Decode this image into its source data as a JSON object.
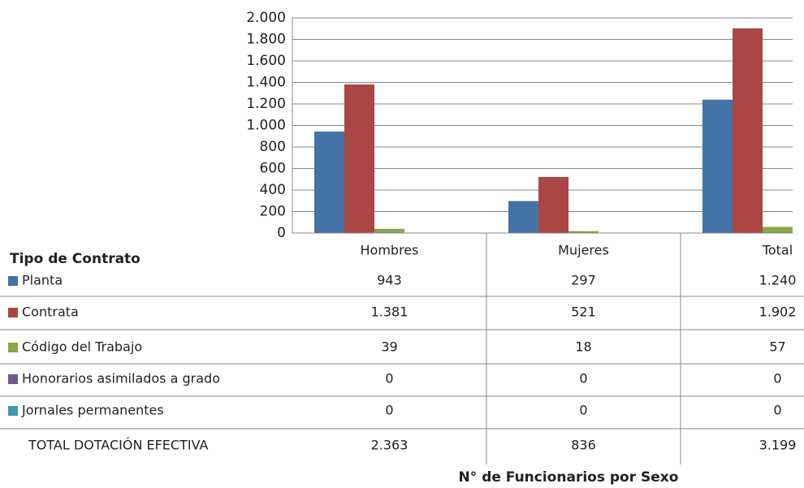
{
  "chart_data": {
    "type": "bar",
    "x_label": "N° de Funcionarios por Sexo",
    "table_title": "Tipo de Contrato",
    "categories": [
      "Hombres",
      "Mujeres",
      "Total"
    ],
    "series": [
      {
        "name": "Planta",
        "color": "#4572a7",
        "values": [
          943,
          297,
          1240
        ],
        "value_labels": [
          "943",
          "297",
          "1.240"
        ]
      },
      {
        "name": "Contrata",
        "color": "#aa4643",
        "values": [
          1381,
          521,
          1902
        ],
        "value_labels": [
          "1.381",
          "521",
          "1.902"
        ]
      },
      {
        "name": "Código del Trabajo",
        "color": "#89a54e",
        "values": [
          39,
          18,
          57
        ],
        "value_labels": [
          "39",
          "18",
          "57"
        ]
      },
      {
        "name": "Honorarios asimilados a grado",
        "color": "#71588f",
        "values": [
          0,
          0,
          0
        ],
        "value_labels": [
          "0",
          "0",
          "0"
        ]
      },
      {
        "name": "Jornales permanentes",
        "color": "#4198af",
        "values": [
          0,
          0,
          0
        ],
        "value_labels": [
          "0",
          "0",
          "0"
        ]
      }
    ],
    "total_row": {
      "name": "TOTAL DOTACIÓN EFECTIVA",
      "values": [
        2363,
        836,
        3199
      ],
      "value_labels": [
        "2.363",
        "836",
        "3.199"
      ]
    },
    "ylim": [
      0,
      2000
    ],
    "yticks": [
      0,
      200,
      400,
      600,
      800,
      {
        "value": 1000,
        "label": "1.000"
      },
      {
        "value": 1200,
        "label": "1.200"
      },
      {
        "value": 1400,
        "label": "1.400"
      },
      {
        "value": 1600,
        "label": "1.600"
      },
      {
        "value": 1800,
        "label": "1.800"
      },
      {
        "value": 2000,
        "label": "2.000"
      }
    ],
    "grid": true
  }
}
